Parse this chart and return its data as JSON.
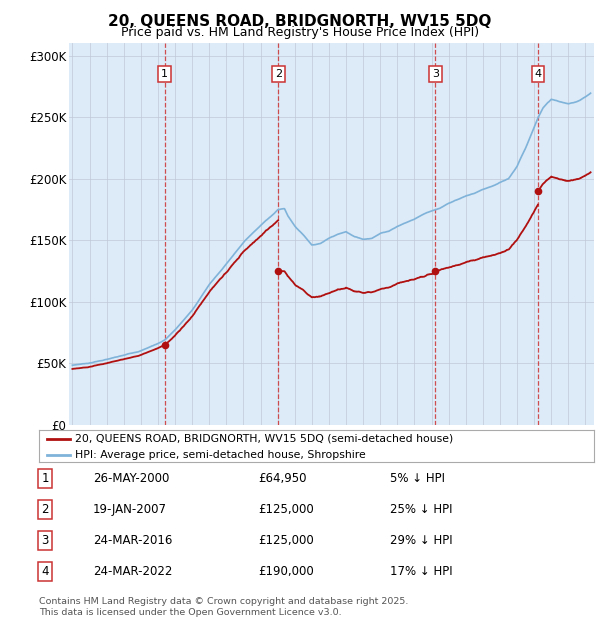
{
  "title": "20, QUEENS ROAD, BRIDGNORTH, WV15 5DQ",
  "subtitle": "Price paid vs. HM Land Registry's House Price Index (HPI)",
  "footer": "Contains HM Land Registry data © Crown copyright and database right 2025.\nThis data is licensed under the Open Government Licence v3.0.",
  "legend_line1": "20, QUEENS ROAD, BRIDGNORTH, WV15 5DQ (semi-detached house)",
  "legend_line2": "HPI: Average price, semi-detached house, Shropshire",
  "transactions": [
    {
      "num": 1,
      "date": "26-MAY-2000",
      "price": 64950,
      "pct": "5% ↓ HPI",
      "year_x": 2000.4
    },
    {
      "num": 2,
      "date": "19-JAN-2007",
      "price": 125000,
      "pct": "25% ↓ HPI",
      "year_x": 2007.05
    },
    {
      "num": 3,
      "date": "24-MAR-2016",
      "price": 125000,
      "pct": "29% ↓ HPI",
      "year_x": 2016.23
    },
    {
      "num": 4,
      "date": "24-MAR-2022",
      "price": 190000,
      "pct": "17% ↓ HPI",
      "year_x": 2022.23
    }
  ],
  "hpi_color": "#7fb3d9",
  "price_color": "#b01010",
  "vline_color": "#cc3333",
  "bg_color": "#ddeaf7",
  "grid_color": "#c0c8d8",
  "ylim": [
    0,
    310000
  ],
  "xlim": [
    1994.8,
    2025.5
  ],
  "yticks": [
    0,
    50000,
    100000,
    150000,
    200000,
    250000,
    300000
  ],
  "ytick_labels": [
    "£0",
    "£50K",
    "£100K",
    "£150K",
    "£200K",
    "£250K",
    "£300K"
  ],
  "xticks": [
    1995,
    1996,
    1997,
    1998,
    1999,
    2000,
    2001,
    2002,
    2003,
    2004,
    2005,
    2006,
    2007,
    2008,
    2009,
    2010,
    2011,
    2012,
    2013,
    2014,
    2015,
    2016,
    2017,
    2018,
    2019,
    2020,
    2021,
    2022,
    2023,
    2024,
    2025
  ],
  "table": [
    {
      "num": "1",
      "date": "26-MAY-2000",
      "price": "£64,950",
      "pct": "5% ↓ HPI"
    },
    {
      "num": "2",
      "date": "19-JAN-2007",
      "price": "£125,000",
      "pct": "25% ↓ HPI"
    },
    {
      "num": "3",
      "date": "24-MAR-2016",
      "price": "£125,000",
      "pct": "29% ↓ HPI"
    },
    {
      "num": "4",
      "date": "24-MAR-2022",
      "price": "£190,000",
      "pct": "17% ↓ HPI"
    }
  ]
}
